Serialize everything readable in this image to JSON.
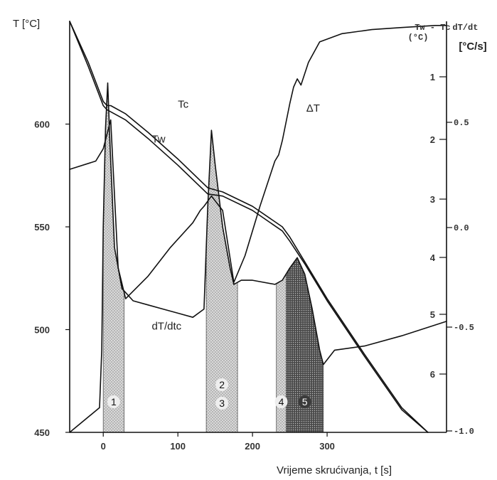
{
  "chart_data": {
    "type": "line",
    "title": "",
    "xlabel": "Vrijeme skrućivanja, t [s]",
    "ylabel_left": "T [°C]",
    "ylabel_right_delta": "Tw - Tc\n(°C)",
    "ylabel_right_rate": "dT/dt\n[°C/s]",
    "xlim": [
      -45,
      460
    ],
    "ylim_left": [
      450,
      650
    ],
    "x_ticks": [
      0,
      100,
      200,
      300
    ],
    "y_ticks_left": [
      450,
      500,
      550,
      600
    ],
    "y_ticks_delta": [
      1,
      2,
      3,
      4,
      5,
      6
    ],
    "y_ticks_rate": [
      "-1.0",
      "-0.5",
      "0.0",
      "0.5"
    ],
    "rate_tick_values": [
      -1.0,
      -0.5,
      0.0,
      0.5
    ],
    "grid": false,
    "legend": "none",
    "series": [
      {
        "name": "Tc",
        "x": [
          -45,
          -20,
          0,
          5,
          10,
          30,
          60,
          100,
          140,
          160,
          200,
          240,
          250,
          270,
          300,
          350,
          400,
          435
        ],
        "y": [
          650,
          630,
          611,
          609,
          609,
          605,
          596,
          583,
          569,
          567,
          560,
          550,
          545,
          533,
          515,
          488,
          462,
          450
        ]
      },
      {
        "name": "Tw",
        "x": [
          -45,
          -20,
          0,
          5,
          10,
          30,
          60,
          100,
          140,
          160,
          200,
          240,
          250,
          270,
          300,
          350,
          400,
          435
        ],
        "y": [
          650,
          628,
          609,
          607,
          606,
          602,
          593,
          580,
          566,
          565,
          558,
          548,
          543,
          532,
          514,
          487,
          461,
          450
        ]
      },
      {
        "name": "dT/dtc",
        "x": [
          -45,
          -5,
          -2,
          0,
          3,
          6,
          9,
          15,
          25,
          40,
          60,
          80,
          100,
          120,
          135,
          140,
          145,
          150,
          160,
          170,
          175,
          185,
          200,
          230,
          240,
          250,
          260,
          270,
          280,
          290,
          295,
          310,
          350,
          400,
          460
        ],
        "y": [
          450,
          462,
          490,
          550,
          598,
          620,
          590,
          540,
          520,
          514,
          512,
          510,
          508,
          506,
          510,
          560,
          597,
          580,
          550,
          530,
          522,
          524,
          524,
          522,
          524,
          530,
          535,
          527,
          510,
          490,
          483,
          490,
          492,
          497,
          504
        ]
      },
      {
        "name": "ΔT",
        "x": [
          -45,
          -10,
          0,
          10,
          20,
          30,
          60,
          90,
          120,
          130,
          135,
          145,
          160,
          175,
          190,
          210,
          230,
          235,
          240,
          250,
          255,
          260,
          265,
          275,
          290,
          320,
          360,
          400,
          445,
          460
        ],
        "y": [
          578,
          582,
          588,
          602,
          530,
          515,
          526,
          540,
          552,
          558,
          560,
          565,
          558,
          523,
          536,
          560,
          582,
          585,
          592,
          610,
          618,
          622,
          619,
          630,
          640,
          644,
          646,
          647,
          648,
          648
        ]
      }
    ],
    "regions": [
      {
        "label": "1",
        "x_start": 0,
        "x_end": 28,
        "shade": "light"
      },
      {
        "label": "2",
        "x_start": 138,
        "x_end": 180,
        "shade": "light",
        "second_label": "3"
      },
      {
        "label": "4",
        "x_start": 232,
        "x_end": 245,
        "shade": "light"
      },
      {
        "label": "5",
        "x_start": 245,
        "x_end": 295,
        "shade": "dark"
      }
    ],
    "annotations": [
      {
        "text": "Tc",
        "x": 100,
        "y": 608
      },
      {
        "text": "Tw",
        "x": 65,
        "y": 591
      },
      {
        "text": "dT/dtc",
        "x": 65,
        "y": 500
      },
      {
        "text": "ΔT",
        "x": 272,
        "y": 606
      }
    ]
  }
}
